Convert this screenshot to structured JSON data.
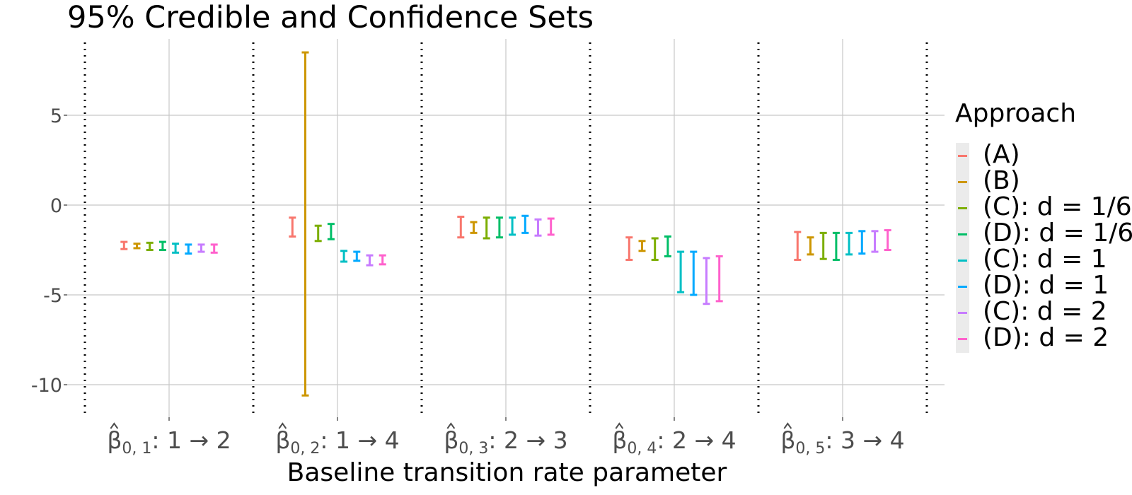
{
  "chart_data": {
    "type": "errorbar",
    "title": "95% Credible and Confidence Sets",
    "xlabel": "Baseline transition rate parameter",
    "ylabel": "",
    "ylim": [
      -11.6,
      9.2
    ],
    "yticks": [
      5,
      0,
      -5,
      -10
    ],
    "ytick_labels": [
      "5",
      "0",
      "-5",
      "-10"
    ],
    "grid": true,
    "legend": {
      "title": "Approach",
      "position": "right"
    },
    "categories": [
      {
        "hat": "β",
        "sub": "0, 1",
        "rest": ": 1 → 2"
      },
      {
        "hat": "β",
        "sub": "0, 2",
        "rest": ": 1 → 4"
      },
      {
        "hat": "β",
        "sub": "0, 3",
        "rest": ": 2 → 3"
      },
      {
        "hat": "β",
        "sub": "0, 4",
        "rest": ": 2 → 4"
      },
      {
        "hat": "β",
        "sub": "0, 5",
        "rest": ": 3 → 4"
      }
    ],
    "series": [
      {
        "name": "(A)",
        "color": "#f8766d",
        "intervals": [
          [
            -2.45,
            -2.05
          ],
          [
            -1.75,
            -0.7
          ],
          [
            -1.8,
            -0.65
          ],
          [
            -3.05,
            -1.8
          ],
          [
            -3.05,
            -1.5
          ]
        ]
      },
      {
        "name": "(B)",
        "color": "#cd9600",
        "intervals": [
          [
            -2.4,
            -2.15
          ],
          [
            -10.6,
            8.5
          ],
          [
            -1.55,
            -0.95
          ],
          [
            -2.55,
            -2.0
          ],
          [
            -2.75,
            -1.8
          ]
        ]
      },
      {
        "name": "(C): d = 1/6",
        "color": "#7cae00",
        "intervals": [
          [
            -2.5,
            -2.1
          ],
          [
            -2.0,
            -1.15
          ],
          [
            -1.85,
            -0.7
          ],
          [
            -3.05,
            -1.85
          ],
          [
            -3.0,
            -1.55
          ]
        ]
      },
      {
        "name": "(D): d = 1/6",
        "color": "#00be67",
        "intervals": [
          [
            -2.5,
            -2.05
          ],
          [
            -1.9,
            -1.05
          ],
          [
            -1.8,
            -0.7
          ],
          [
            -2.85,
            -1.75
          ],
          [
            -3.05,
            -1.55
          ]
        ]
      },
      {
        "name": "(C): d = 1",
        "color": "#00bfc4",
        "intervals": [
          [
            -2.65,
            -2.15
          ],
          [
            -3.15,
            -2.55
          ],
          [
            -1.65,
            -0.7
          ],
          [
            -4.85,
            -2.6
          ],
          [
            -2.75,
            -1.55
          ]
        ]
      },
      {
        "name": "(D): d = 1",
        "color": "#00a9ff",
        "intervals": [
          [
            -2.7,
            -2.2
          ],
          [
            -3.1,
            -2.6
          ],
          [
            -1.55,
            -0.6
          ],
          [
            -5.0,
            -2.6
          ],
          [
            -2.7,
            -1.45
          ]
        ]
      },
      {
        "name": "(C): d = 2",
        "color": "#c77cff",
        "intervals": [
          [
            -2.6,
            -2.2
          ],
          [
            -3.35,
            -2.8
          ],
          [
            -1.7,
            -0.8
          ],
          [
            -5.5,
            -2.95
          ],
          [
            -2.6,
            -1.45
          ]
        ]
      },
      {
        "name": "(D): d = 2",
        "color": "#ff61cc",
        "intervals": [
          [
            -2.65,
            -2.2
          ],
          [
            -3.3,
            -2.8
          ],
          [
            -1.65,
            -0.75
          ],
          [
            -5.35,
            -2.85
          ],
          [
            -2.5,
            -1.4
          ]
        ]
      }
    ]
  }
}
